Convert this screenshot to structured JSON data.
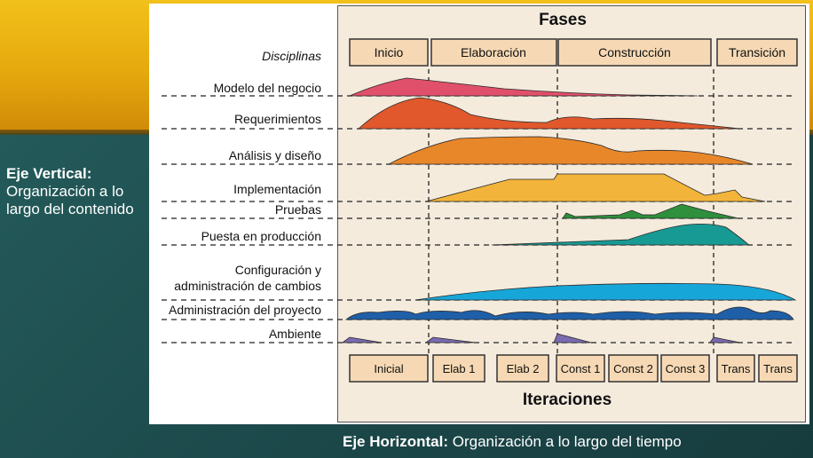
{
  "side_note": {
    "title": "Eje Vertical:",
    "body": "Organización a lo largo del contenido"
  },
  "bottom_note": {
    "title": "Eje Horizontal:",
    "body": " Organización a lo largo del tiempo"
  },
  "diagram": {
    "phases_title": "Fases",
    "iterations_title": "Iteraciones",
    "disciplines_header": "Disciplinas",
    "phases": [
      "Inicio",
      "Elaboración",
      "Construcción",
      "Transición"
    ],
    "iterations": [
      "Inicial",
      "Elab 1",
      "Elab 2",
      "Const 1",
      "Const 2",
      "Const 3",
      "Trans",
      "Trans"
    ],
    "disciplines": [
      {
        "label": "Modelo del negocio",
        "color": "#e0506a"
      },
      {
        "label": "Requerimientos",
        "color": "#e0582c"
      },
      {
        "label": "Análisis y diseño",
        "color": "#e8872a"
      },
      {
        "label": "Implementación",
        "color": "#f2b43a"
      },
      {
        "label": "Pruebas",
        "color": "#2e8f3c"
      },
      {
        "label": "Puesta en producción",
        "color": "#189a94"
      },
      {
        "label": "Configuración y",
        "label2": "administración de cambios",
        "color": "#17a6d8"
      },
      {
        "label": "Administración del proyecto",
        "color": "#1f5fa8"
      },
      {
        "label": "Ambiente",
        "color": "#7a6ab0"
      }
    ],
    "colors": {
      "phase_box": "#f6d9b4",
      "panel_bg": "#f4ebdd"
    }
  }
}
